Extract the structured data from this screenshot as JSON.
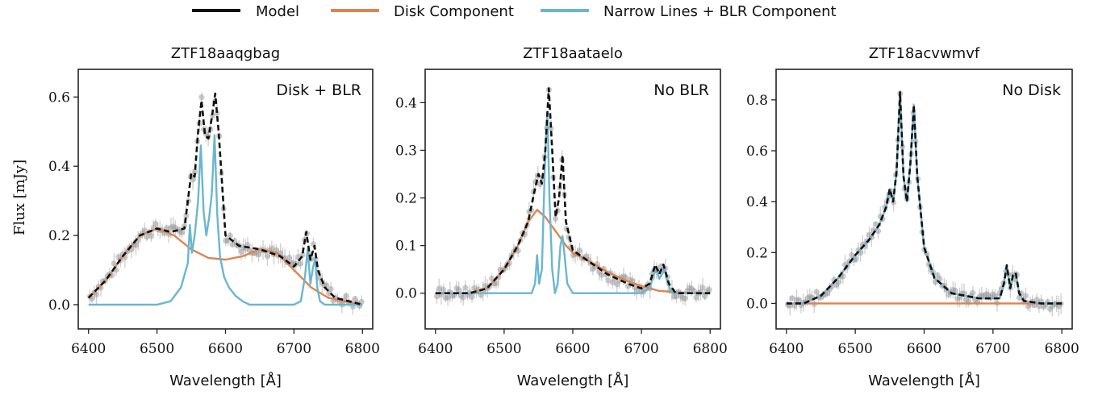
{
  "legend": {
    "items": [
      {
        "label": "Model",
        "color": "#111111"
      },
      {
        "label": "Disk Component",
        "color": "#dd8452"
      },
      {
        "label": "Narrow Lines + BLR Component",
        "color": "#6bb6cf"
      }
    ]
  },
  "shared": {
    "xlabel": "Wavelength [Å]",
    "ylabel": "Flux [mJy]",
    "model_style": "dashed",
    "observed_points_color": "#9a9a9a"
  },
  "chart_data": [
    {
      "type": "line",
      "title": "ZTF18aaqgbag",
      "annotation": "Disk + BLR",
      "xlim": [
        6385,
        6815
      ],
      "ylim": [
        -0.07,
        0.68
      ],
      "xticks": [
        6400,
        6500,
        6600,
        6700,
        6800
      ],
      "yticks": [
        0.0,
        0.2,
        0.4,
        0.6
      ],
      "ytick_labels": [
        "0.0",
        "0.2",
        "0.4",
        "0.6"
      ],
      "grid": false,
      "series": [
        {
          "name": "Model",
          "style": "dashed",
          "x": [
            6400,
            6425,
            6450,
            6475,
            6500,
            6520,
            6540,
            6550,
            6555,
            6560,
            6565,
            6570,
            6575,
            6580,
            6585,
            6590,
            6600,
            6620,
            6650,
            6680,
            6700,
            6712,
            6718,
            6724,
            6730,
            6735,
            6745,
            6760,
            6780,
            6800
          ],
          "y": [
            0.02,
            0.07,
            0.14,
            0.2,
            0.22,
            0.21,
            0.22,
            0.38,
            0.37,
            0.5,
            0.59,
            0.49,
            0.48,
            0.54,
            0.61,
            0.5,
            0.2,
            0.17,
            0.16,
            0.14,
            0.11,
            0.14,
            0.21,
            0.13,
            0.17,
            0.1,
            0.05,
            0.02,
            0.01,
            0.0
          ]
        },
        {
          "name": "Disk Component",
          "x": [
            6400,
            6425,
            6450,
            6475,
            6500,
            6525,
            6550,
            6575,
            6600,
            6625,
            6650,
            6675,
            6700,
            6725,
            6750,
            6775,
            6800
          ],
          "y": [
            0.02,
            0.07,
            0.14,
            0.2,
            0.22,
            0.2,
            0.16,
            0.135,
            0.13,
            0.14,
            0.16,
            0.15,
            0.1,
            0.05,
            0.02,
            0.01,
            0.0
          ]
        },
        {
          "name": "Narrow Lines + BLR Component",
          "x": [
            6400,
            6500,
            6520,
            6535,
            6545,
            6548,
            6551,
            6555,
            6560,
            6564,
            6568,
            6572,
            6576,
            6580,
            6584,
            6588,
            6592,
            6598,
            6605,
            6615,
            6625,
            6635,
            6650,
            6680,
            6700,
            6710,
            6716,
            6720,
            6724,
            6728,
            6731,
            6734,
            6738,
            6745,
            6800
          ],
          "y": [
            0.0,
            0.0,
            0.01,
            0.05,
            0.12,
            0.23,
            0.15,
            0.2,
            0.3,
            0.46,
            0.27,
            0.2,
            0.25,
            0.32,
            0.49,
            0.26,
            0.14,
            0.08,
            0.05,
            0.025,
            0.01,
            0.0,
            0.0,
            0.0,
            0.0,
            0.01,
            0.08,
            0.16,
            0.06,
            0.11,
            0.13,
            0.05,
            0.01,
            0.0,
            0.0
          ]
        }
      ]
    },
    {
      "type": "line",
      "title": "ZTF18aataelo",
      "annotation": "No BLR",
      "xlim": [
        6385,
        6815
      ],
      "ylim": [
        -0.075,
        0.47
      ],
      "xticks": [
        6400,
        6500,
        6600,
        6700,
        6800
      ],
      "yticks": [
        0.0,
        0.1,
        0.2,
        0.3,
        0.4
      ],
      "ytick_labels": [
        "0.0",
        "0.1",
        "0.2",
        "0.3",
        "0.4"
      ],
      "grid": false,
      "series": [
        {
          "name": "Model",
          "style": "dashed",
          "x": [
            6400,
            6450,
            6475,
            6500,
            6520,
            6535,
            6545,
            6550,
            6555,
            6560,
            6565,
            6570,
            6575,
            6580,
            6585,
            6590,
            6600,
            6620,
            6650,
            6680,
            6700,
            6712,
            6720,
            6726,
            6732,
            6740,
            6750,
            6775,
            6800
          ],
          "y": [
            0.0,
            0.0,
            0.01,
            0.05,
            0.1,
            0.15,
            0.22,
            0.25,
            0.23,
            0.3,
            0.43,
            0.3,
            0.16,
            0.2,
            0.29,
            0.15,
            0.09,
            0.07,
            0.04,
            0.02,
            0.01,
            0.02,
            0.06,
            0.04,
            0.06,
            0.02,
            0.0,
            0.0,
            0.0
          ]
        },
        {
          "name": "Disk Component",
          "x": [
            6400,
            6450,
            6475,
            6500,
            6520,
            6535,
            6548,
            6560,
            6575,
            6590,
            6600,
            6620,
            6650,
            6680,
            6700,
            6725,
            6750,
            6775,
            6800
          ],
          "y": [
            0.0,
            0.0,
            0.01,
            0.05,
            0.1,
            0.15,
            0.175,
            0.16,
            0.13,
            0.1,
            0.085,
            0.07,
            0.045,
            0.025,
            0.015,
            0.005,
            0.002,
            0.0,
            0.0
          ]
        },
        {
          "name": "Narrow Lines + BLR Component",
          "x": [
            6400,
            6540,
            6545,
            6548,
            6551,
            6555,
            6560,
            6563,
            6566,
            6570,
            6574,
            6578,
            6582,
            6585,
            6588,
            6592,
            6600,
            6700,
            6712,
            6718,
            6722,
            6726,
            6730,
            6734,
            6738,
            6745,
            6800
          ],
          "y": [
            0.0,
            0.0,
            0.02,
            0.08,
            0.02,
            0.05,
            0.3,
            0.38,
            0.2,
            0.05,
            0.0,
            0.02,
            0.1,
            0.12,
            0.08,
            0.02,
            0.0,
            0.0,
            0.01,
            0.04,
            0.05,
            0.03,
            0.04,
            0.05,
            0.02,
            0.0,
            0.0
          ]
        }
      ]
    },
    {
      "type": "line",
      "title": "ZTF18acvwmvf",
      "annotation": "No Disk",
      "xlim": [
        6385,
        6815
      ],
      "ylim": [
        -0.1,
        0.92
      ],
      "xticks": [
        6400,
        6500,
        6600,
        6700,
        6800
      ],
      "yticks": [
        0.0,
        0.2,
        0.4,
        0.6,
        0.8
      ],
      "ytick_labels": [
        "0.0",
        "0.2",
        "0.4",
        "0.6",
        "0.8"
      ],
      "grid": false,
      "series": [
        {
          "name": "Model",
          "style": "dashed",
          "x": [
            6400,
            6425,
            6450,
            6475,
            6500,
            6520,
            6535,
            6545,
            6550,
            6555,
            6560,
            6565,
            6570,
            6575,
            6580,
            6585,
            6590,
            6600,
            6615,
            6640,
            6680,
            6710,
            6716,
            6720,
            6725,
            6729,
            6733,
            6738,
            6745,
            6770,
            6800
          ],
          "y": [
            0.0,
            0.0,
            0.03,
            0.1,
            0.19,
            0.25,
            0.31,
            0.38,
            0.45,
            0.4,
            0.52,
            0.83,
            0.5,
            0.4,
            0.55,
            0.78,
            0.5,
            0.22,
            0.1,
            0.04,
            0.02,
            0.02,
            0.08,
            0.15,
            0.06,
            0.11,
            0.12,
            0.04,
            0.01,
            0.0,
            0.0
          ]
        },
        {
          "name": "Disk Component",
          "x": [
            6400,
            6800
          ],
          "y": [
            0.0,
            0.0
          ]
        },
        {
          "name": "Narrow Lines + BLR Component",
          "x": [
            6400,
            6425,
            6450,
            6475,
            6500,
            6520,
            6535,
            6545,
            6550,
            6555,
            6560,
            6565,
            6570,
            6575,
            6580,
            6585,
            6590,
            6600,
            6615,
            6640,
            6680,
            6710,
            6716,
            6720,
            6725,
            6729,
            6733,
            6738,
            6745,
            6770,
            6800
          ],
          "y": [
            0.0,
            0.0,
            0.03,
            0.1,
            0.19,
            0.25,
            0.31,
            0.38,
            0.45,
            0.4,
            0.52,
            0.83,
            0.5,
            0.4,
            0.55,
            0.78,
            0.5,
            0.22,
            0.1,
            0.04,
            0.02,
            0.02,
            0.08,
            0.15,
            0.06,
            0.11,
            0.12,
            0.04,
            0.01,
            0.0,
            0.0
          ]
        }
      ]
    }
  ]
}
